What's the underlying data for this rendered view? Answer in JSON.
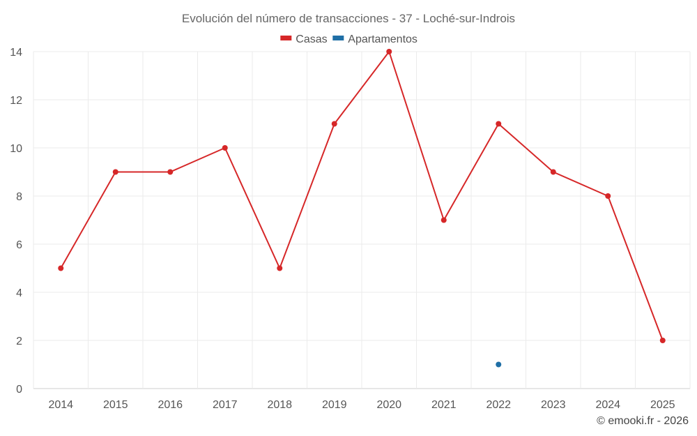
{
  "chart_data": {
    "type": "line",
    "title": "Evolución del número de transacciones - 37 - Loché-sur-Indrois",
    "categories": [
      "2014",
      "2015",
      "2016",
      "2017",
      "2018",
      "2019",
      "2020",
      "2021",
      "2022",
      "2023",
      "2024",
      "2025"
    ],
    "series": [
      {
        "name": "Casas",
        "color": "#d62728",
        "values": [
          5,
          9,
          9,
          10,
          5,
          11,
          14,
          7,
          11,
          9,
          8,
          2
        ]
      },
      {
        "name": "Apartamentos",
        "color": "#1f6fa6",
        "values": [
          null,
          null,
          null,
          null,
          null,
          null,
          null,
          null,
          1,
          null,
          null,
          null
        ]
      }
    ],
    "ylim": [
      0,
      14
    ],
    "yticks": [
      0,
      2,
      4,
      6,
      8,
      10,
      12,
      14
    ],
    "legend_position": "top-center",
    "grid": true
  },
  "credit": "© emooki.fr - 2026"
}
